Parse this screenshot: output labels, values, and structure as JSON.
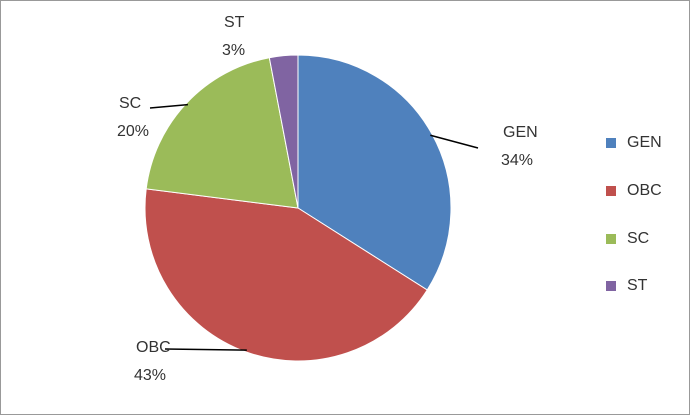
{
  "chart_data": {
    "type": "pie",
    "categories": [
      "GEN",
      "OBC",
      "SC",
      "ST"
    ],
    "values": [
      34,
      43,
      20,
      3
    ],
    "value_labels": [
      "34%",
      "43%",
      "20%",
      "3%"
    ],
    "colors": [
      "#4f81bd",
      "#c0504d",
      "#9bbb59",
      "#8064a2"
    ],
    "legend": "right"
  }
}
